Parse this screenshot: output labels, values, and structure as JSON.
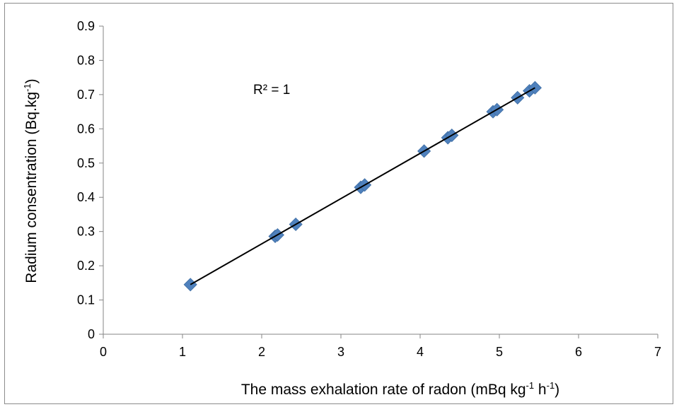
{
  "chart_data": {
    "type": "scatter",
    "title": "",
    "xlabel": {
      "prefix": "The mass exhalation rate of radon (mBq kg",
      "sup1": "-1",
      "middle": " h",
      "sup2": "-1",
      "suffix": ")"
    },
    "ylabel": {
      "prefix": "Radium consentration (Bq.kg",
      "sup": "-1",
      "suffix": ")"
    },
    "xlim": [
      0,
      7
    ],
    "ylim": [
      0,
      0.9
    ],
    "xticks": [
      "0",
      "1",
      "2",
      "3",
      "4",
      "5",
      "6",
      "7"
    ],
    "yticks": [
      "0",
      "0.1",
      "0.2",
      "0.3",
      "0.4",
      "0.5",
      "0.6",
      "0.7",
      "0.8",
      "0.9"
    ],
    "grid": false,
    "legend": "none",
    "annotation": "R² = 1",
    "series": [
      {
        "marker": "diamond",
        "color": "#4f81bd",
        "points": [
          [
            1.1,
            0.145
          ],
          [
            2.17,
            0.286
          ],
          [
            2.2,
            0.29
          ],
          [
            2.43,
            0.321
          ],
          [
            3.25,
            0.429
          ],
          [
            3.3,
            0.436
          ],
          [
            4.05,
            0.535
          ],
          [
            4.35,
            0.574
          ],
          [
            4.4,
            0.581
          ],
          [
            4.92,
            0.65
          ],
          [
            4.97,
            0.656
          ],
          [
            5.23,
            0.691
          ],
          [
            5.38,
            0.711
          ],
          [
            5.45,
            0.72
          ]
        ]
      }
    ],
    "trendline": {
      "type": "linear",
      "color": "#000000",
      "x": [
        1.1,
        5.45
      ],
      "y": [
        0.145,
        0.72
      ]
    }
  }
}
